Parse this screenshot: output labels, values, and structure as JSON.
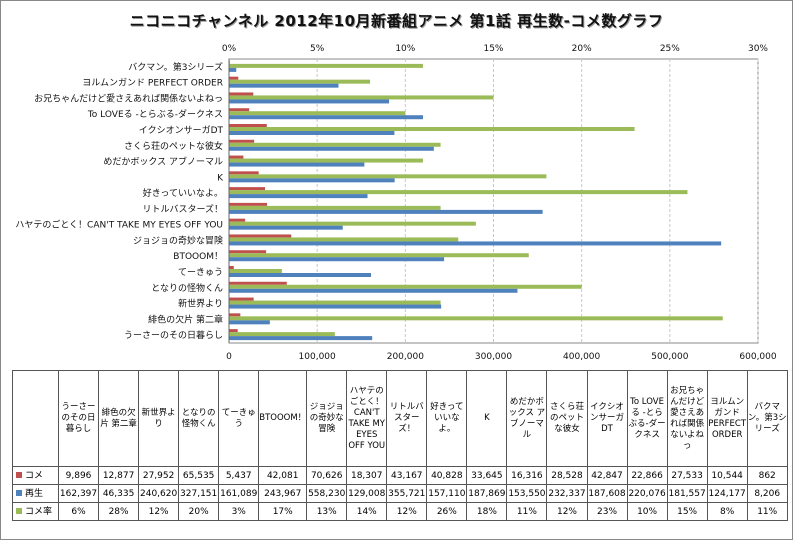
{
  "chart_data": {
    "type": "bar",
    "orientation": "horizontal",
    "title": "ニコニコチャンネル 2012年10月新番組アニメ 第1話 再生数-コメ数グラフ",
    "categories": [
      "うーさーのその日暮らし",
      "緋色の欠片 第二章",
      "新世界より",
      "となりの怪物くん",
      "てーきゅう",
      "BTOOOM！",
      "ジョジョの奇妙な冒険",
      "ハヤテのごとく！CAN'T TAKE MY EYES OFF YOU",
      "リトルバスターズ！",
      "好きっていいなよ。",
      "K",
      "めだかボックス アブノーマル",
      "さくら荘のペットな彼女",
      "イクシオンサーガDT",
      "To LOVEる -とらぶる-ダークネス",
      "お兄ちゃんだけど愛さえあれば関係ないよねっ",
      "ヨルムンガンド PERFECT ORDER",
      "バクマン。第3シリーズ"
    ],
    "table_headers": [
      "うーさーのその日暮らし",
      "緋色の欠片 第二章",
      "新世界より",
      "となりの怪物くん",
      "てーきゅう",
      "BTOOOM！",
      "ジョジョの奇妙な冒険",
      "ハヤテのごとく！CAN'T TAKE MY EYES OFF YOU",
      "リトルバスターズ！",
      "好きっていいなよ。",
      "K",
      "めだかボックス アブノーマル",
      "さくら荘のペットな彼女",
      "イクシオンサーガDT",
      "To LOVEる -とらぶる-ダークネス",
      "お兄ちゃんだけど愛さえあれば関係ないよねっ",
      "ヨルムンガンド PERFECT ORDER",
      "バクマン。第3シリーズ"
    ],
    "series": [
      {
        "name": "コメ",
        "axis": "bottom",
        "color": "#c0504d",
        "values": [
          9896,
          12877,
          27952,
          65535,
          5437,
          42081,
          70626,
          18307,
          43167,
          40828,
          33645,
          16316,
          28528,
          42847,
          22866,
          27533,
          10544,
          862
        ],
        "display": [
          "9,896",
          "12,877",
          "27,952",
          "65,535",
          "5,437",
          "42,081",
          "70,626",
          "18,307",
          "43,167",
          "40,828",
          "33,645",
          "16,316",
          "28,528",
          "42,847",
          "22,866",
          "27,533",
          "10,544",
          "862"
        ]
      },
      {
        "name": "再生",
        "axis": "bottom",
        "color": "#4f81bd",
        "values": [
          162397,
          46335,
          240620,
          327151,
          161089,
          243967,
          558230,
          129008,
          355721,
          157110,
          187869,
          153550,
          232337,
          187608,
          220076,
          181557,
          124177,
          8206
        ],
        "display": [
          "162,397",
          "46,335",
          "240,620",
          "327,151",
          "161,089",
          "243,967",
          "558,230",
          "129,008",
          "355,721",
          "157,110",
          "187,869",
          "153,550",
          "232,337",
          "187,608",
          "220,076",
          "181,557",
          "124,177",
          "8,206"
        ]
      },
      {
        "name": "コメ率",
        "axis": "top",
        "color": "#9bbb59",
        "values": [
          6,
          28,
          12,
          20,
          3,
          17,
          13,
          14,
          12,
          26,
          18,
          11,
          12,
          23,
          10,
          15,
          8,
          11
        ],
        "display": [
          "6%",
          "28%",
          "12%",
          "20%",
          "3%",
          "17%",
          "13%",
          "14%",
          "12%",
          "26%",
          "18%",
          "11%",
          "12%",
          "23%",
          "10%",
          "15%",
          "8%",
          "11%"
        ]
      }
    ],
    "x_bottom": {
      "range": [
        0,
        600000
      ],
      "ticks": [
        "0",
        "100,000",
        "200,000",
        "300,000",
        "400,000",
        "500,000",
        "600,000"
      ]
    },
    "x_top": {
      "range": [
        0,
        30
      ],
      "ticks": [
        "0%",
        "5%",
        "10%",
        "15%",
        "20%",
        "25%",
        "30%"
      ]
    },
    "grid": true,
    "legend": "table"
  }
}
